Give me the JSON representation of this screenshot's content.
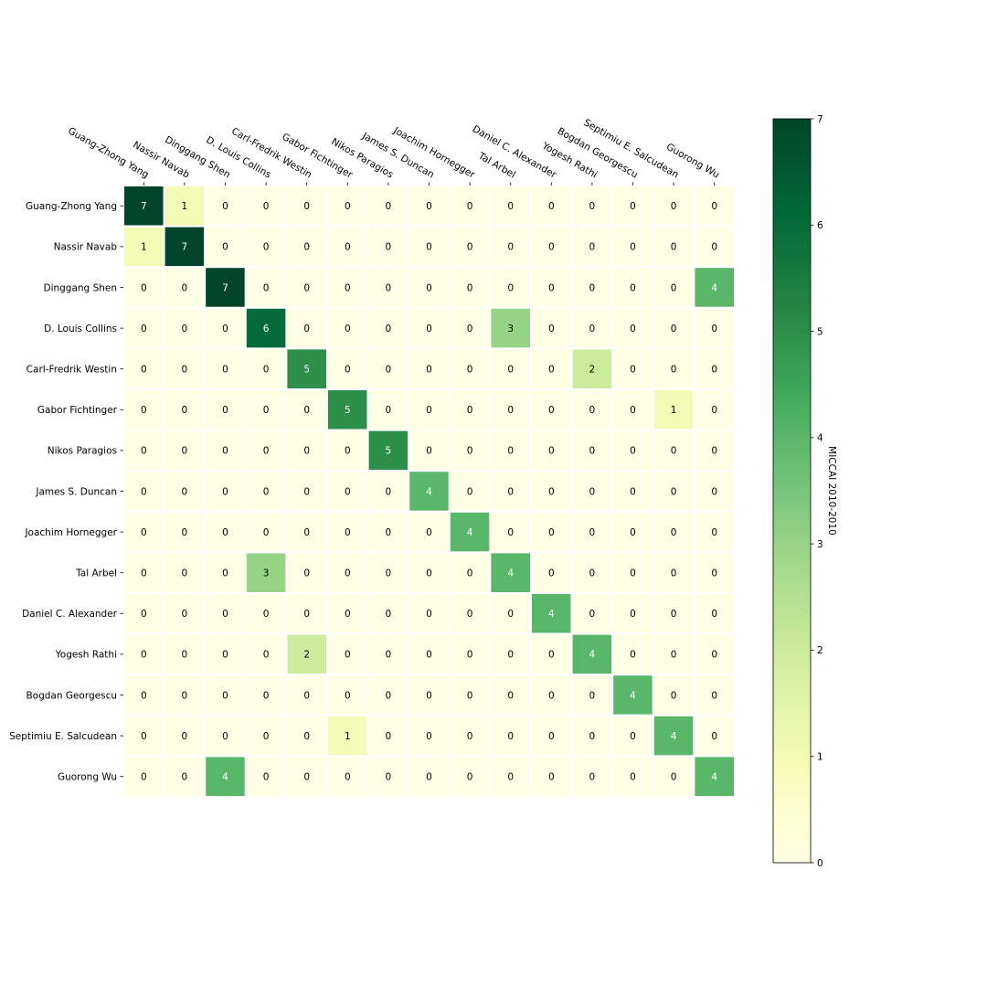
{
  "chart_data": {
    "type": "heatmap",
    "row_labels": [
      "Guang-Zhong Yang",
      "Nassir Navab",
      "Dinggang Shen",
      "D. Louis Collins",
      "Carl-Fredrik Westin",
      "Gabor Fichtinger",
      "Nikos Paragios",
      "James S. Duncan",
      "Joachim Hornegger",
      "Tal Arbel",
      "Daniel C. Alexander",
      "Yogesh Rathi",
      "Bogdan Georgescu",
      "Septimiu E. Salcudean",
      "Guorong Wu"
    ],
    "col_labels": [
      "Guang-Zhong Yang",
      "Nassir Navab",
      "Dinggang Shen",
      "D. Louis Collins",
      "Carl-Fredrik Westin",
      "Gabor Fichtinger",
      "Nikos Paragios",
      "James S. Duncan",
      "Joachim Hornegger",
      "Tal Arbel",
      "Daniel C. Alexander",
      "Yogesh Rathi",
      "Bogdan Georgescu",
      "Septimiu E. Salcudean",
      "Guorong Wu"
    ],
    "values": [
      [
        7,
        1,
        0,
        0,
        0,
        0,
        0,
        0,
        0,
        0,
        0,
        0,
        0,
        0,
        0
      ],
      [
        1,
        7,
        0,
        0,
        0,
        0,
        0,
        0,
        0,
        0,
        0,
        0,
        0,
        0,
        0
      ],
      [
        0,
        0,
        7,
        0,
        0,
        0,
        0,
        0,
        0,
        0,
        0,
        0,
        0,
        0,
        4
      ],
      [
        0,
        0,
        0,
        6,
        0,
        0,
        0,
        0,
        0,
        3,
        0,
        0,
        0,
        0,
        0
      ],
      [
        0,
        0,
        0,
        0,
        5,
        0,
        0,
        0,
        0,
        0,
        0,
        2,
        0,
        0,
        0
      ],
      [
        0,
        0,
        0,
        0,
        0,
        5,
        0,
        0,
        0,
        0,
        0,
        0,
        0,
        1,
        0
      ],
      [
        0,
        0,
        0,
        0,
        0,
        0,
        5,
        0,
        0,
        0,
        0,
        0,
        0,
        0,
        0
      ],
      [
        0,
        0,
        0,
        0,
        0,
        0,
        0,
        4,
        0,
        0,
        0,
        0,
        0,
        0,
        0
      ],
      [
        0,
        0,
        0,
        0,
        0,
        0,
        0,
        0,
        4,
        0,
        0,
        0,
        0,
        0,
        0
      ],
      [
        0,
        0,
        0,
        3,
        0,
        0,
        0,
        0,
        0,
        4,
        0,
        0,
        0,
        0,
        0
      ],
      [
        0,
        0,
        0,
        0,
        0,
        0,
        0,
        0,
        0,
        0,
        4,
        0,
        0,
        0,
        0
      ],
      [
        0,
        0,
        0,
        0,
        2,
        0,
        0,
        0,
        0,
        0,
        0,
        4,
        0,
        0,
        0
      ],
      [
        0,
        0,
        0,
        0,
        0,
        0,
        0,
        0,
        0,
        0,
        0,
        0,
        4,
        0,
        0
      ],
      [
        0,
        0,
        0,
        0,
        0,
        1,
        0,
        0,
        0,
        0,
        0,
        0,
        0,
        4,
        0
      ],
      [
        0,
        0,
        4,
        0,
        0,
        0,
        0,
        0,
        0,
        0,
        0,
        0,
        0,
        0,
        4
      ]
    ],
    "colorbar": {
      "label": "MICCAI 2010-2010",
      "range": [
        0,
        7
      ],
      "ticks": [
        0,
        1,
        2,
        3,
        4,
        5,
        6,
        7
      ]
    },
    "colormap": "YlGn",
    "colormap_stops": [
      "#ffffe5",
      "#f7fcb9",
      "#d9f0a3",
      "#addd8e",
      "#78c679",
      "#41ab5d",
      "#238443",
      "#006837",
      "#004529"
    ],
    "cell_border_color": "#ffffff",
    "text_light_color": "#ffffff",
    "text_dark_color": "#000000"
  }
}
